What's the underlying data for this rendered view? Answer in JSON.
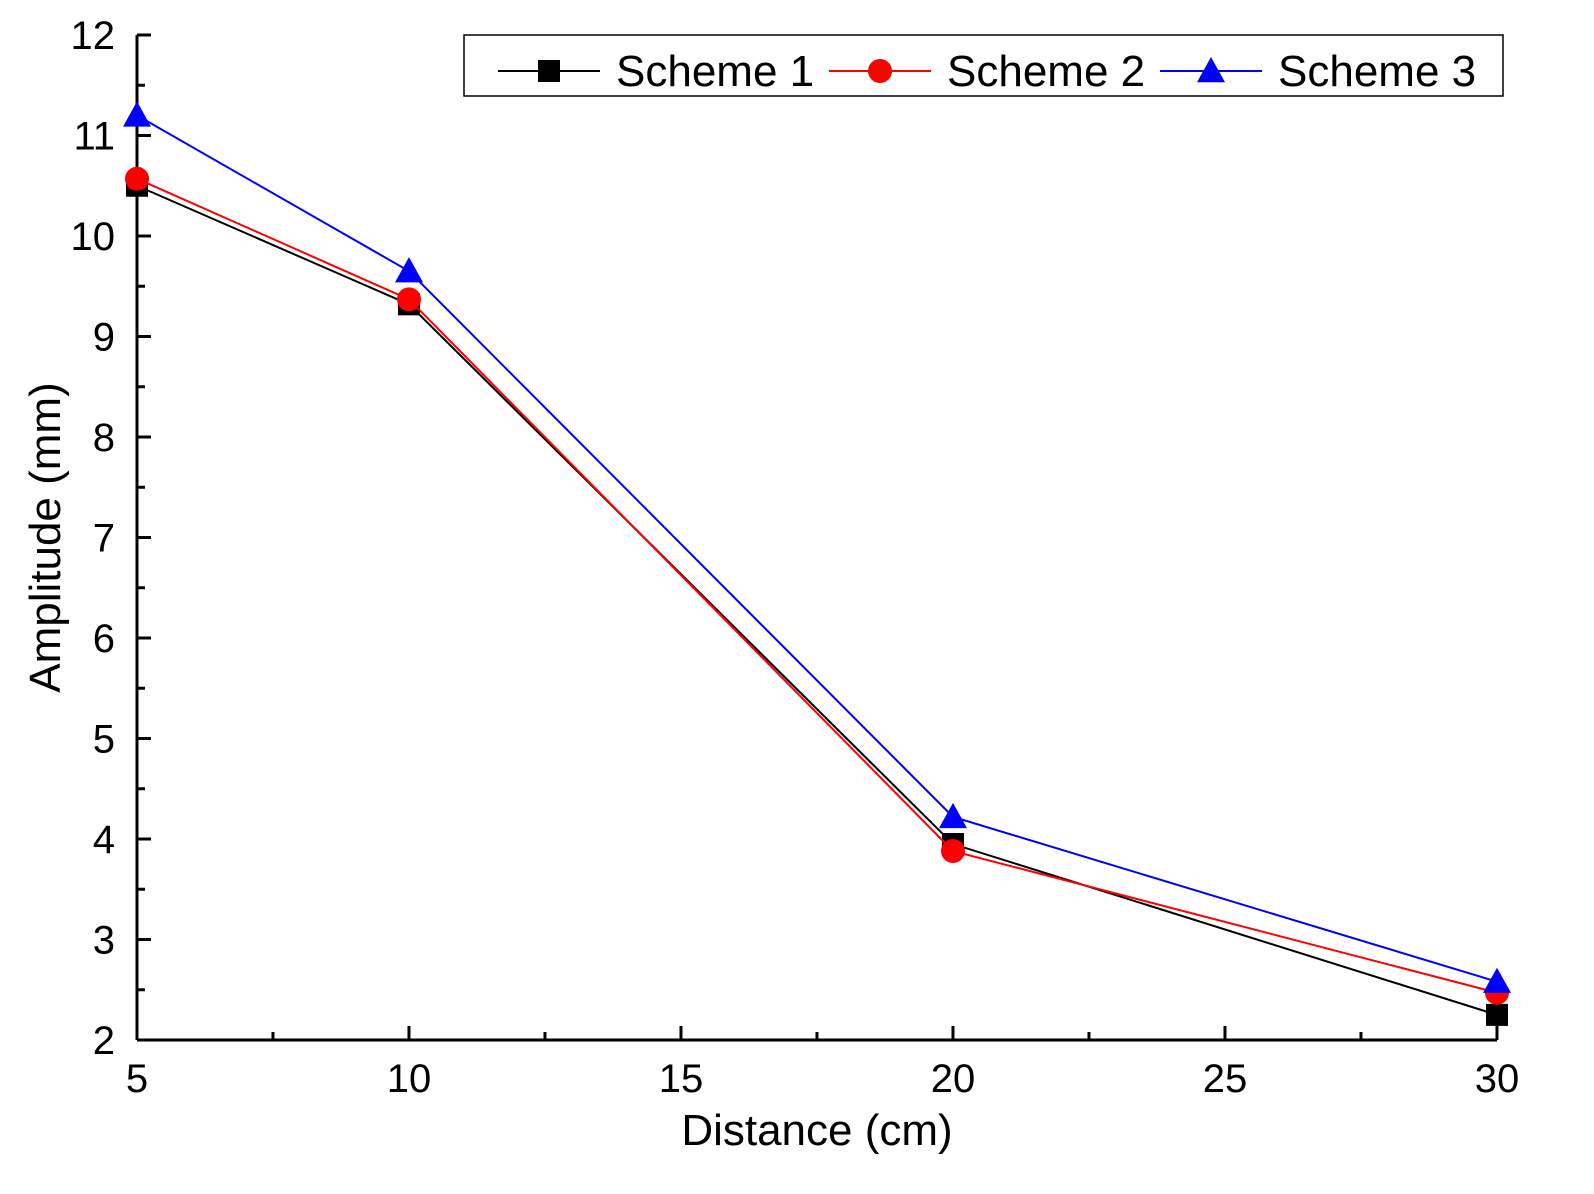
{
  "chart_data": {
    "type": "line",
    "title": "",
    "xlabel": "Distance (cm)",
    "ylabel": "Amplitude (mm)",
    "x": [
      5,
      10,
      20,
      30
    ],
    "xlim": [
      5,
      30
    ],
    "ylim": [
      2,
      12
    ],
    "xticks": [
      5,
      10,
      15,
      20,
      25,
      30
    ],
    "yticks": [
      2,
      3,
      4,
      5,
      6,
      7,
      8,
      9,
      10,
      11,
      12
    ],
    "grid": false,
    "legend_position": "top-right",
    "series": [
      {
        "name": "Scheme 1",
        "marker": "square",
        "color": "#000000",
        "values": [
          10.5,
          9.32,
          3.95,
          2.25
        ]
      },
      {
        "name": "Scheme 2",
        "marker": "circle",
        "color": "#ff0000",
        "values": [
          10.57,
          9.37,
          3.88,
          2.47
        ]
      },
      {
        "name": "Scheme 3",
        "marker": "triangle",
        "color": "#0000ff",
        "values": [
          11.2,
          9.65,
          4.22,
          2.58
        ]
      }
    ]
  }
}
